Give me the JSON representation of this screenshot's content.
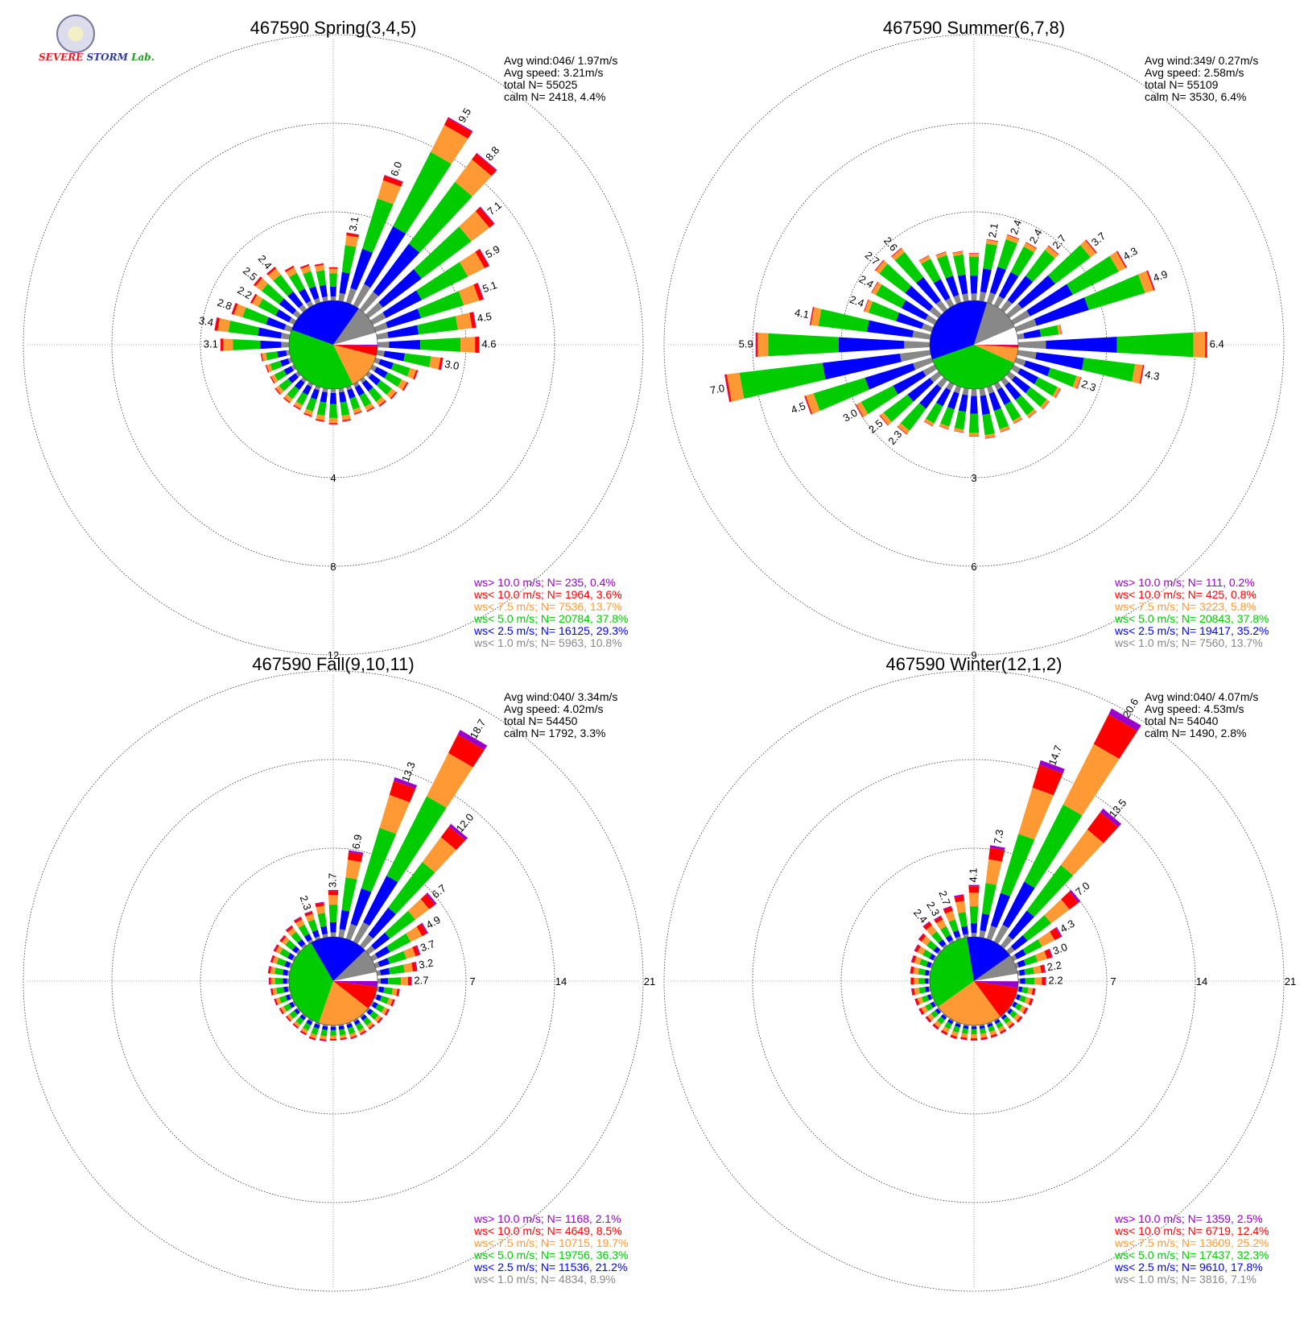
{
  "logo": {
    "text_severe": "SEVERE",
    "text_storm": "STORM",
    "text_lab": "Lab."
  },
  "colors": {
    "ws_gt10": "#9900cc",
    "ws_lt10": "#ff0000",
    "ws_lt7_5": "#ff9933",
    "ws_lt5": "#00cc00",
    "ws_lt2_5": "#0000ff",
    "ws_lt1": "#888888",
    "calm": "#ffffff"
  },
  "chart_data": [
    {
      "type": "wind-rose",
      "title": "467590 Spring(3,4,5)",
      "stats": [
        "Avg wind:046/ 1.97m/s",
        "Avg speed: 3.21m/s",
        "total N=      55025",
        "calm N=  2418,   4.4%"
      ],
      "rings": [
        4,
        8,
        12
      ],
      "ring_labels": [
        "4",
        "8",
        "12"
      ],
      "directions_deg": [
        0,
        10,
        20,
        30,
        40,
        50,
        60,
        70,
        80,
        90,
        100,
        110,
        120,
        130,
        140,
        150,
        160,
        170,
        180,
        190,
        200,
        210,
        220,
        230,
        240,
        250,
        260,
        270,
        280,
        290,
        300,
        310,
        320,
        330,
        340,
        350
      ],
      "totals_pct": [
        1.5,
        3.1,
        6.0,
        9.5,
        8.8,
        7.1,
        5.9,
        5.1,
        4.5,
        4.6,
        3.0,
        2.0,
        1.8,
        1.6,
        1.5,
        1.4,
        1.3,
        1.5,
        1.6,
        1.5,
        1.4,
        1.3,
        1.3,
        1.3,
        1.2,
        1.2,
        1.3,
        3.1,
        3.4,
        2.8,
        2.2,
        2.5,
        2.4,
        2.0,
        1.8,
        1.7
      ],
      "labeled_directions_deg": [
        10,
        20,
        30,
        40,
        50,
        60,
        70,
        80,
        90,
        100,
        270,
        280,
        290,
        300,
        310,
        320
      ],
      "legend": [
        {
          "text": "ws> 10.0 m/s; N=   235,  0.4%",
          "color": "#9900cc"
        },
        {
          "text": "ws< 10.0 m/s; N=  1964,  3.6%",
          "color": "#ff0000"
        },
        {
          "text": "ws<  7.5 m/s; N=  7536, 13.7%",
          "color": "#ff9933"
        },
        {
          "text": "ws<  5.0 m/s; N= 20784, 37.8%",
          "color": "#00cc00"
        },
        {
          "text": "ws<  2.5 m/s; N= 16125, 29.3%",
          "color": "#0000ff"
        },
        {
          "text": "ws<  1.0 m/s; N=  5963, 10.8%",
          "color": "#888888"
        }
      ],
      "class_pct": [
        0.4,
        3.6,
        13.7,
        37.8,
        29.3,
        10.8,
        4.4
      ]
    },
    {
      "type": "wind-rose",
      "title": "467590 Summer(6,7,8)",
      "stats": [
        "Avg wind:349/ 0.27m/s",
        "Avg speed: 2.58m/s",
        "total N=      55109",
        "calm N=  3530,   6.4%"
      ],
      "rings": [
        3,
        6,
        9
      ],
      "ring_labels": [
        "3",
        "6",
        "9"
      ],
      "directions_deg": [
        0,
        10,
        20,
        30,
        40,
        50,
        60,
        70,
        80,
        90,
        100,
        110,
        120,
        130,
        140,
        150,
        160,
        170,
        180,
        190,
        200,
        210,
        220,
        230,
        240,
        250,
        260,
        270,
        280,
        290,
        300,
        310,
        320,
        330,
        340,
        350
      ],
      "totals_pct": [
        1.6,
        2.1,
        2.4,
        2.4,
        2.7,
        3.7,
        4.3,
        4.9,
        1.5,
        6.4,
        4.3,
        2.3,
        1.8,
        1.7,
        1.6,
        1.5,
        1.6,
        1.7,
        1.6,
        1.5,
        1.5,
        1.6,
        2.3,
        2.5,
        3.0,
        4.5,
        7.0,
        5.9,
        4.1,
        2.4,
        2.4,
        2.7,
        2.6,
        1.9,
        1.8,
        1.7
      ],
      "labeled_directions_deg": [
        10,
        20,
        30,
        40,
        50,
        60,
        70,
        90,
        100,
        110,
        220,
        230,
        240,
        250,
        260,
        270,
        280,
        290,
        300,
        310,
        320
      ],
      "legend": [
        {
          "text": "ws> 10.0 m/s; N=   111,  0.2%",
          "color": "#9900cc"
        },
        {
          "text": "ws< 10.0 m/s; N=   425,  0.8%",
          "color": "#ff0000"
        },
        {
          "text": "ws<  7.5 m/s; N=  3223,  5.8%",
          "color": "#ff9933"
        },
        {
          "text": "ws<  5.0 m/s; N= 20843, 37.8%",
          "color": "#00cc00"
        },
        {
          "text": "ws<  2.5 m/s; N= 19417, 35.2%",
          "color": "#0000ff"
        },
        {
          "text": "ws<  1.0 m/s; N=  7560, 13.7%",
          "color": "#888888"
        }
      ],
      "class_pct": [
        0.2,
        0.8,
        5.8,
        37.8,
        35.2,
        13.7,
        6.4
      ]
    },
    {
      "type": "wind-rose",
      "title": "467590 Fall(9,10,11)",
      "stats": [
        "Avg wind:040/ 3.34m/s",
        "Avg speed: 4.02m/s",
        "total N=      54450",
        "calm N=  1792,   3.3%"
      ],
      "rings": [
        7,
        14,
        21
      ],
      "ring_labels": [
        "7",
        "14",
        "21"
      ],
      "directions_deg": [
        0,
        10,
        20,
        30,
        40,
        50,
        60,
        70,
        80,
        90,
        100,
        110,
        120,
        130,
        140,
        150,
        160,
        170,
        180,
        190,
        200,
        210,
        220,
        230,
        240,
        250,
        260,
        270,
        280,
        290,
        300,
        310,
        320,
        330,
        340,
        350
      ],
      "totals_pct": [
        3.7,
        6.9,
        13.3,
        18.7,
        12.0,
        6.7,
        4.9,
        3.7,
        3.2,
        2.7,
        1.8,
        1.6,
        1.5,
        1.4,
        1.3,
        1.3,
        1.3,
        1.2,
        1.2,
        1.3,
        1.4,
        1.3,
        1.2,
        1.2,
        1.3,
        1.4,
        1.5,
        1.6,
        1.7,
        1.7,
        1.8,
        1.8,
        2.0,
        2.2,
        2.3,
        2.8
      ],
      "labeled_directions_deg": [
        0,
        10,
        20,
        30,
        40,
        50,
        60,
        70,
        80,
        90,
        340
      ],
      "legend": [
        {
          "text": "ws> 10.0 m/s; N=  1168,  2.1%",
          "color": "#9900cc"
        },
        {
          "text": "ws< 10.0 m/s; N=  4649,  8.5%",
          "color": "#ff0000"
        },
        {
          "text": "ws<  7.5 m/s; N= 10715, 19.7%",
          "color": "#ff9933"
        },
        {
          "text": "ws<  5.0 m/s; N= 19756, 36.3%",
          "color": "#00cc00"
        },
        {
          "text": "ws<  2.5 m/s; N= 11536, 21.2%",
          "color": "#0000ff"
        },
        {
          "text": "ws<  1.0 m/s; N=  4834,  8.9%",
          "color": "#888888"
        }
      ],
      "class_pct": [
        2.1,
        8.5,
        19.7,
        36.3,
        21.2,
        8.9,
        3.3
      ]
    },
    {
      "type": "wind-rose",
      "title": "467590 Winter(12,1,2)",
      "stats": [
        "Avg wind:040/ 4.07m/s",
        "Avg speed: 4.53m/s",
        "total N=      54040",
        "calm N=  1490,   2.8%"
      ],
      "rings": [
        7,
        14,
        21
      ],
      "ring_labels": [
        "7",
        "14",
        "21"
      ],
      "directions_deg": [
        0,
        10,
        20,
        30,
        40,
        50,
        60,
        70,
        80,
        90,
        100,
        110,
        120,
        130,
        140,
        150,
        160,
        170,
        180,
        190,
        200,
        210,
        220,
        230,
        240,
        250,
        260,
        270,
        280,
        290,
        300,
        310,
        320,
        330,
        340,
        350
      ],
      "totals_pct": [
        4.1,
        7.3,
        14.7,
        20.6,
        13.5,
        7.0,
        4.3,
        3.0,
        2.2,
        2.2,
        1.4,
        1.4,
        1.3,
        1.3,
        1.2,
        1.2,
        1.2,
        1.2,
        1.2,
        1.2,
        1.3,
        1.3,
        1.3,
        1.3,
        1.4,
        1.4,
        1.5,
        1.5,
        1.6,
        1.7,
        1.8,
        2.0,
        2.4,
        2.3,
        2.7,
        3.4
      ],
      "labeled_directions_deg": [
        0,
        10,
        20,
        30,
        40,
        50,
        60,
        70,
        80,
        90,
        320,
        330,
        340
      ],
      "legend": [
        {
          "text": "ws> 10.0 m/s; N=  1359,  2.5%",
          "color": "#9900cc"
        },
        {
          "text": "ws< 10.0 m/s; N=  6719, 12.4%",
          "color": "#ff0000"
        },
        {
          "text": "ws<  7.5 m/s; N= 13609, 25.2%",
          "color": "#ff9933"
        },
        {
          "text": "ws<  5.0 m/s; N= 17437, 32.3%",
          "color": "#00cc00"
        },
        {
          "text": "ws<  2.5 m/s; N=  9610, 17.8%",
          "color": "#0000ff"
        },
        {
          "text": "ws<  1.0 m/s; N=  3816,  7.1%",
          "color": "#888888"
        }
      ],
      "class_pct": [
        2.5,
        12.4,
        25.2,
        32.3,
        17.8,
        7.1,
        2.8
      ]
    }
  ]
}
